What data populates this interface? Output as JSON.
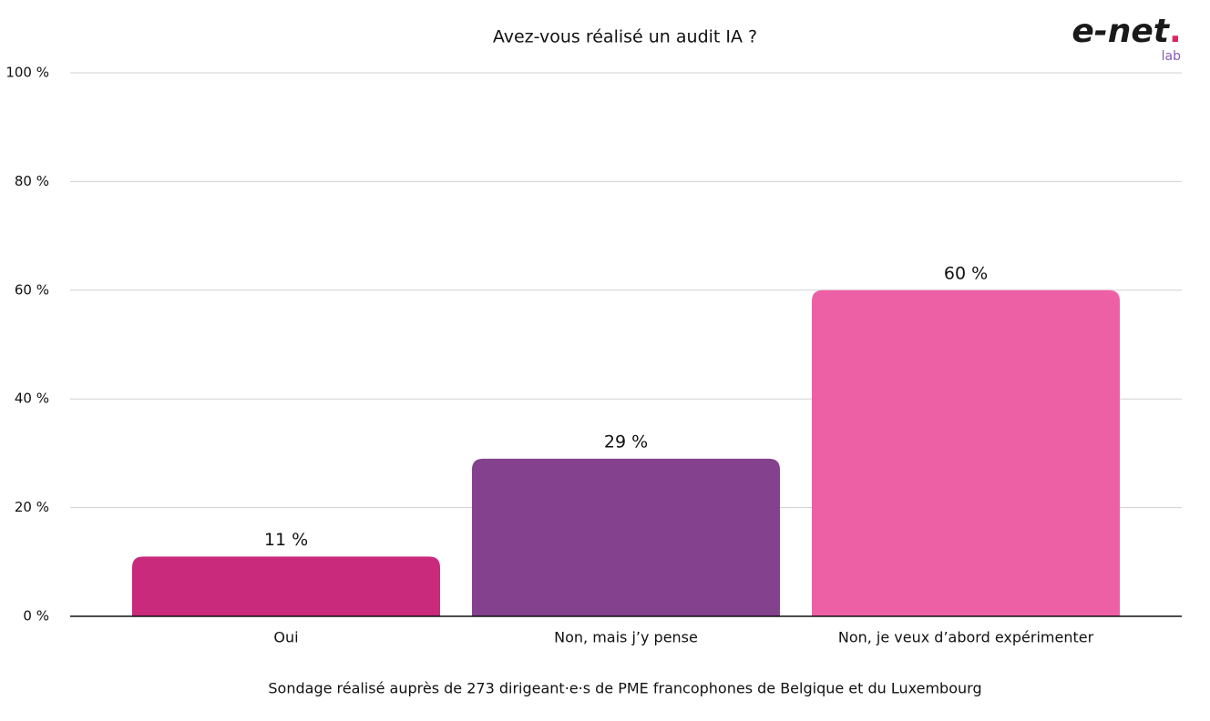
{
  "chart_data": {
    "type": "bar",
    "title": "Avez-vous réalisé un audit IA ?",
    "categories": [
      "Oui",
      "Non, mais j’y pense",
      "Non, je veux d’abord expérimenter"
    ],
    "values": [
      11,
      29,
      60
    ],
    "value_labels": [
      "11 %",
      "29 %",
      "60 %"
    ],
    "colors": [
      "#c92a7c",
      "#84418e",
      "#ee60a5"
    ],
    "ylim": [
      0,
      100
    ],
    "yticks": [
      {
        "value": 0,
        "label": "0 %"
      },
      {
        "value": 20,
        "label": "20 %"
      },
      {
        "value": 40,
        "label": "40 %"
      },
      {
        "value": 60,
        "label": "60 %"
      },
      {
        "value": 80,
        "label": "80 %"
      },
      {
        "value": 100,
        "label": "100 %"
      }
    ],
    "grid": true,
    "caption": "Sondage réalisé auprès de 273 dirigeant·e·s de PME francophones de Belgique et du Luxembourg"
  },
  "logo": {
    "name": "e-net",
    "dot": ".",
    "sub": "lab"
  }
}
